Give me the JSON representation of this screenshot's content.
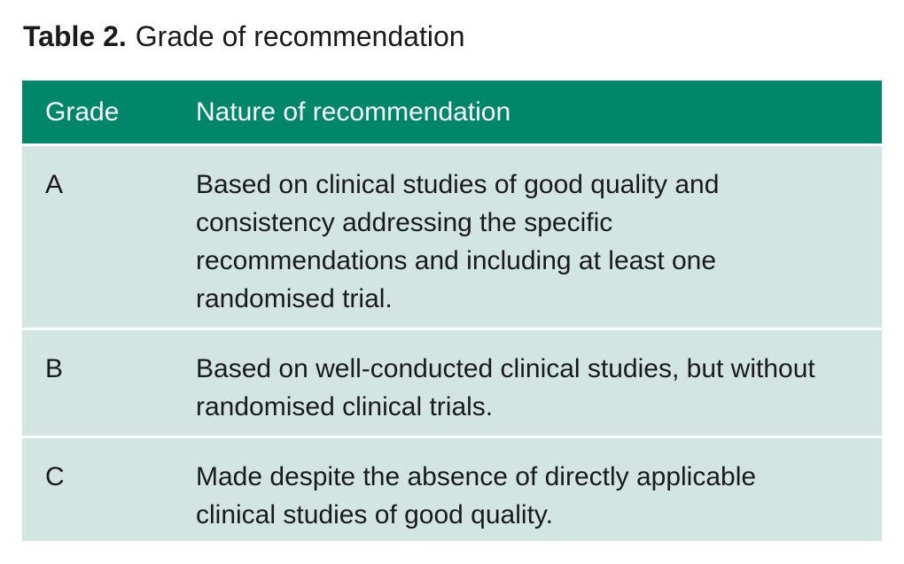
{
  "caption": {
    "label": "Table 2.",
    "title": "Grade of recommendation"
  },
  "table": {
    "headers": [
      "Grade",
      "Nature of recommendation"
    ],
    "rows": [
      {
        "grade": "A",
        "nature": "Based on clinical studies of good quality and consistency addressing the specific recommendations and including at least one randomised trial."
      },
      {
        "grade": "B",
        "nature": "Based on well-conducted clinical studies, but without randomised clinical trials."
      },
      {
        "grade": "C",
        "nature": "Made despite the absence of directly applicable clinical studies of good quality."
      }
    ]
  },
  "colors": {
    "header_bg": "#00876a",
    "row_bg": "#d2e5e0"
  }
}
